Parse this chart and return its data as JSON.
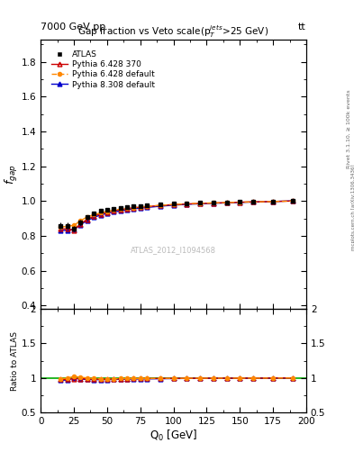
{
  "title": "Gap fraction vs Veto scale(p$_T^{jets}$>25 GeV)",
  "header_left": "7000 GeV pp",
  "header_right": "tt",
  "xlabel": "Q$_0$ [GeV]",
  "ylabel_main": "f$_{gap}$",
  "ylabel_ratio": "Ratio to ATLAS",
  "right_label_top": "Rivet 3.1.10, ≥ 100k events",
  "right_label_bot": "mcplots.cern.ch [arXiv:1306.3436]",
  "watermark": "ATLAS_2012_I1094568",
  "x_data": [
    15,
    20,
    25,
    30,
    35,
    40,
    45,
    50,
    55,
    60,
    65,
    70,
    75,
    80,
    90,
    100,
    110,
    120,
    130,
    140,
    150,
    160,
    175,
    190
  ],
  "atlas_y": [
    0.858,
    0.858,
    0.84,
    0.877,
    0.907,
    0.928,
    0.942,
    0.951,
    0.957,
    0.961,
    0.965,
    0.969,
    0.972,
    0.975,
    0.98,
    0.984,
    0.987,
    0.989,
    0.991,
    0.993,
    0.995,
    0.997,
    0.998,
    1.0
  ],
  "atlas_err": [
    0.018,
    0.018,
    0.016,
    0.014,
    0.012,
    0.01,
    0.009,
    0.008,
    0.007,
    0.007,
    0.006,
    0.006,
    0.006,
    0.005,
    0.005,
    0.004,
    0.004,
    0.004,
    0.003,
    0.003,
    0.003,
    0.003,
    0.002,
    0.002
  ],
  "pythia6_370_y": [
    0.84,
    0.84,
    0.832,
    0.868,
    0.895,
    0.913,
    0.926,
    0.936,
    0.944,
    0.95,
    0.956,
    0.961,
    0.965,
    0.968,
    0.974,
    0.979,
    0.983,
    0.986,
    0.988,
    0.991,
    0.993,
    0.995,
    0.997,
    1.0
  ],
  "pythia6_default_y": [
    0.85,
    0.855,
    0.86,
    0.887,
    0.908,
    0.921,
    0.932,
    0.94,
    0.947,
    0.953,
    0.958,
    0.962,
    0.966,
    0.969,
    0.975,
    0.98,
    0.984,
    0.987,
    0.989,
    0.991,
    0.993,
    0.995,
    0.997,
    1.0
  ],
  "pythia8_default_y": [
    0.83,
    0.832,
    0.838,
    0.864,
    0.888,
    0.906,
    0.919,
    0.929,
    0.937,
    0.943,
    0.95,
    0.955,
    0.959,
    0.963,
    0.97,
    0.976,
    0.981,
    0.984,
    0.987,
    0.989,
    0.992,
    0.994,
    0.997,
    1.001
  ],
  "atlas_color": "#000000",
  "pythia6_370_color": "#cc0000",
  "pythia6_default_color": "#ff8800",
  "pythia8_default_color": "#0000cc",
  "ylim_main": [
    0.38,
    1.93
  ],
  "ylim_ratio": [
    0.5,
    2.0
  ],
  "xlim": [
    10,
    200
  ]
}
